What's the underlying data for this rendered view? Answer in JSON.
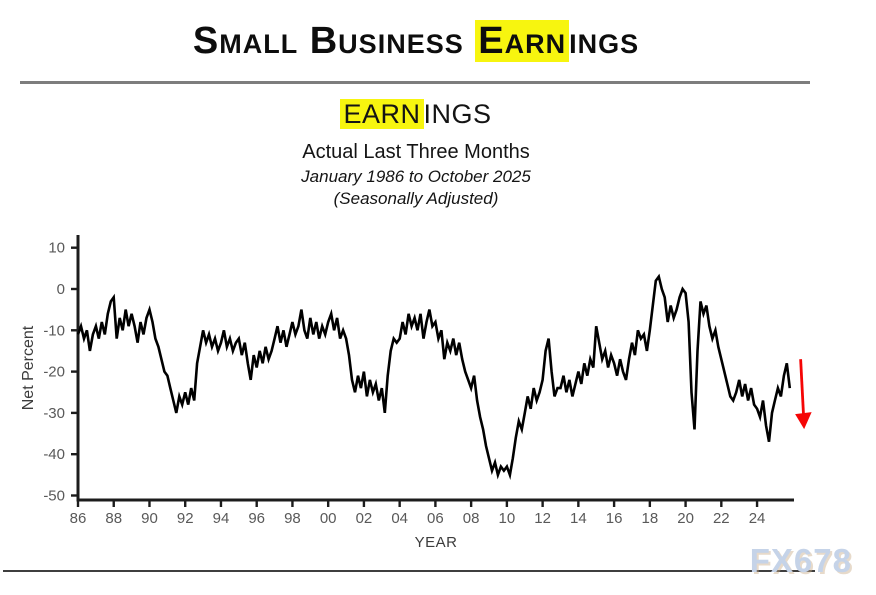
{
  "header": {
    "title_pre": "Small Business ",
    "title_highlight": "Earn",
    "title_post": "ings",
    "subtitle_highlight": "EARN",
    "subtitle_post": "INGS",
    "line2": "Actual Last Three Months",
    "line3": "January 1986 to October 2025",
    "line4": "(Seasonally Adjusted)"
  },
  "watermark": "FX678",
  "colors": {
    "highlight": "#f7f50f",
    "line": "#000000",
    "arrow": "#f50505",
    "axis": "#1c1c1c",
    "tick_label": "#595959",
    "axis_label": "#3c3c3c",
    "top_rule": "#7d7d7d",
    "bottom_rule": "#3f3f3f",
    "watermark": "#c5d3e8"
  },
  "chart_data": {
    "type": "line",
    "series_name": "Small Business Earnings, Actual Last Three Months (Net Percent)",
    "xlabel": "YEAR",
    "ylabel": "Net Percent",
    "x_start_year": 1986.0,
    "x_step_years": 0.1666667,
    "x_end_label": "October 2025",
    "xlim": [
      1986,
      2026.1
    ],
    "ylim": [
      -51,
      13
    ],
    "grid": false,
    "legend": "none",
    "y_ticks": [
      10,
      0,
      -10,
      -20,
      -30,
      -40,
      -50
    ],
    "x_tick_years": [
      1986,
      1988,
      1990,
      1992,
      1994,
      1996,
      1998,
      2000,
      2002,
      2004,
      2006,
      2008,
      2010,
      2012,
      2014,
      2016,
      2018,
      2020,
      2022,
      2024
    ],
    "x_tick_labels": [
      "86",
      "88",
      "90",
      "92",
      "94",
      "96",
      "98",
      "00",
      "02",
      "04",
      "06",
      "08",
      "10",
      "12",
      "14",
      "16",
      "18",
      "20",
      "22",
      "24"
    ],
    "values": [
      -11,
      -9,
      -12,
      -10,
      -15,
      -11,
      -9,
      -12,
      -8,
      -11,
      -6,
      -3,
      -2,
      -12,
      -7,
      -10,
      -5,
      -9,
      -6,
      -9,
      -13,
      -8,
      -11,
      -7,
      -5,
      -8,
      -12,
      -14,
      -17,
      -20,
      -21,
      -24,
      -27,
      -30,
      -26,
      -28,
      -25,
      -28,
      -24,
      -27,
      -18,
      -14,
      -10,
      -13,
      -11,
      -14,
      -12,
      -15,
      -13,
      -10,
      -14,
      -12,
      -15,
      -13,
      -12,
      -16,
      -13,
      -18,
      -22,
      -16,
      -19,
      -15,
      -18,
      -14,
      -17,
      -15,
      -12,
      -9,
      -13,
      -10,
      -14,
      -11,
      -8,
      -11,
      -9,
      -5,
      -10,
      -12,
      -7,
      -11,
      -8,
      -12,
      -9,
      -11,
      -8,
      -6,
      -10,
      -7,
      -12,
      -10,
      -12,
      -16,
      -22,
      -25,
      -21,
      -24,
      -20,
      -26,
      -22,
      -25,
      -23,
      -27,
      -24,
      -30,
      -21,
      -15,
      -12,
      -13,
      -12,
      -8,
      -11,
      -6,
      -9,
      -7,
      -10,
      -6,
      -12,
      -8,
      -5,
      -9,
      -8,
      -12,
      -10,
      -17,
      -13,
      -15,
      -12,
      -16,
      -13,
      -17,
      -20,
      -22,
      -24,
      -21,
      -27,
      -31,
      -34,
      -38,
      -41,
      -44,
      -42,
      -45,
      -43,
      -44,
      -43,
      -45,
      -41,
      -36,
      -32,
      -34,
      -30,
      -26,
      -29,
      -24,
      -27,
      -25,
      -22,
      -15,
      -12,
      -20,
      -26,
      -24,
      -24,
      -21,
      -25,
      -22,
      -26,
      -23,
      -20,
      -23,
      -18,
      -21,
      -17,
      -19,
      -9,
      -13,
      -17,
      -15,
      -19,
      -16,
      -18,
      -21,
      -17,
      -20,
      -22,
      -17,
      -13,
      -16,
      -10,
      -12,
      -11,
      -15,
      -10,
      -4,
      2,
      3,
      0,
      -2,
      -8,
      -4,
      -7,
      -5,
      -2,
      0,
      -1,
      -8,
      -25,
      -34,
      -15,
      -3,
      -6,
      -4,
      -9,
      -12,
      -10,
      -14,
      -17,
      -20,
      -23,
      -26,
      -27,
      -25,
      -22,
      -26,
      -23,
      -27,
      -24,
      -28,
      -29,
      -31,
      -27,
      -33,
      -37,
      -30,
      -27,
      -24,
      -26,
      -21,
      -18,
      -24
    ],
    "annotation_arrow": {
      "at_year": 2026.55,
      "from_value": -17,
      "to_value": -32,
      "direction": "down"
    }
  }
}
